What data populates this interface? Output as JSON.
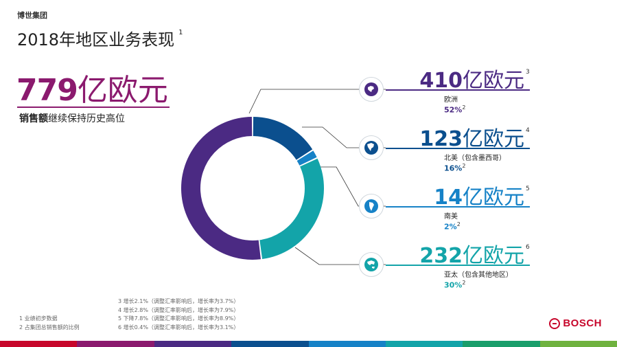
{
  "header": {
    "company": "博世集团",
    "title": "2018年地区业务表现",
    "title_note": "1"
  },
  "total": {
    "value": "779",
    "unit": "亿欧元",
    "subtitle_bold": "销售额",
    "subtitle_rest": "继续保持历史高位"
  },
  "regions": [
    {
      "key": "europe",
      "value": "410",
      "unit": "亿欧元",
      "note": "3",
      "name": "欧洲",
      "percent": "52%",
      "percent_note": "2",
      "color": "#4b2a83",
      "icon": "europe-globe-icon"
    },
    {
      "key": "north_america",
      "value": "123",
      "unit": "亿欧元",
      "note": "4",
      "name": "北美（包含墨西哥）",
      "percent": "16%",
      "percent_note": "2",
      "color": "#0b4f8e",
      "icon": "north-america-globe-icon"
    },
    {
      "key": "south_america",
      "value": "14",
      "unit": "亿欧元",
      "note": "5",
      "name": "南美",
      "percent": "2%",
      "percent_note": "2",
      "color": "#1682c7",
      "icon": "south-america-globe-icon"
    },
    {
      "key": "asia_pacific",
      "value": "232",
      "unit": "亿欧元",
      "note": "6",
      "name": "亚太（包含其他地区）",
      "percent": "30%",
      "percent_note": "2",
      "color": "#13a4a9",
      "icon": "asia-pacific-globe-icon"
    }
  ],
  "footnotes_left": [
    "1 业绩初步数据",
    "2 占集团总销售额的比例"
  ],
  "footnotes_right": [
    "3 增长2.1%（调整汇率影响后，增长率为3.7%）",
    "4 增长2.8%（调整汇率影响后，增长率为7.9%）",
    "5 下降7.8%（调整汇率影响后，增长率为8.9%）",
    "6 增长0.4%（调整汇率影响后，增长率为3.1%）"
  ],
  "logo": {
    "name": "BOSCH"
  },
  "bottom_bar_colors": [
    "#c7062b",
    "#8b1a6e",
    "#4b2a83",
    "#0b4f8e",
    "#1682c7",
    "#13a4a9",
    "#1a9e6b",
    "#6fb23f"
  ]
}
